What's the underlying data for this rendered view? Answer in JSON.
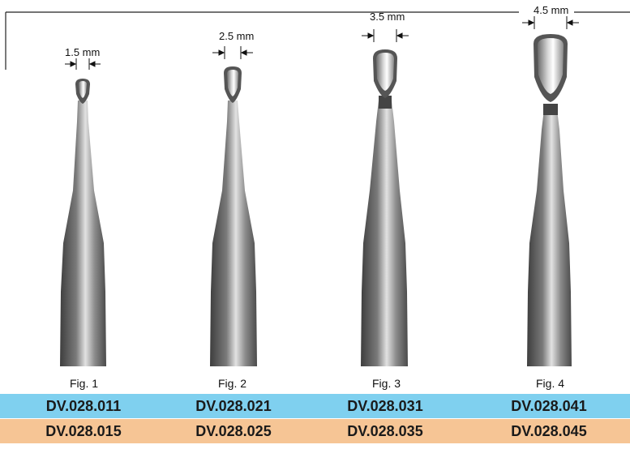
{
  "instruments": [
    {
      "size_label": "1.5 mm",
      "fig_label": "Fig. 1",
      "code_a": "DV.028.011",
      "code_b": "DV.028.015"
    },
    {
      "size_label": "2.5 mm",
      "fig_label": "Fig. 2",
      "code_a": "DV.028.021",
      "code_b": "DV.028.025"
    },
    {
      "size_label": "3.5 mm",
      "fig_label": "Fig. 3",
      "code_a": "DV.028.031",
      "code_b": "DV.028.035"
    },
    {
      "size_label": "4.5 mm",
      "fig_label": "Fig. 4",
      "code_a": "DV.028.041",
      "code_b": "DV.028.045"
    }
  ],
  "colors": {
    "row_a": "#7fd0ef",
    "row_b": "#f6c595",
    "steel_dark": "#4a4a4a",
    "steel_light": "#e8e8e8"
  }
}
